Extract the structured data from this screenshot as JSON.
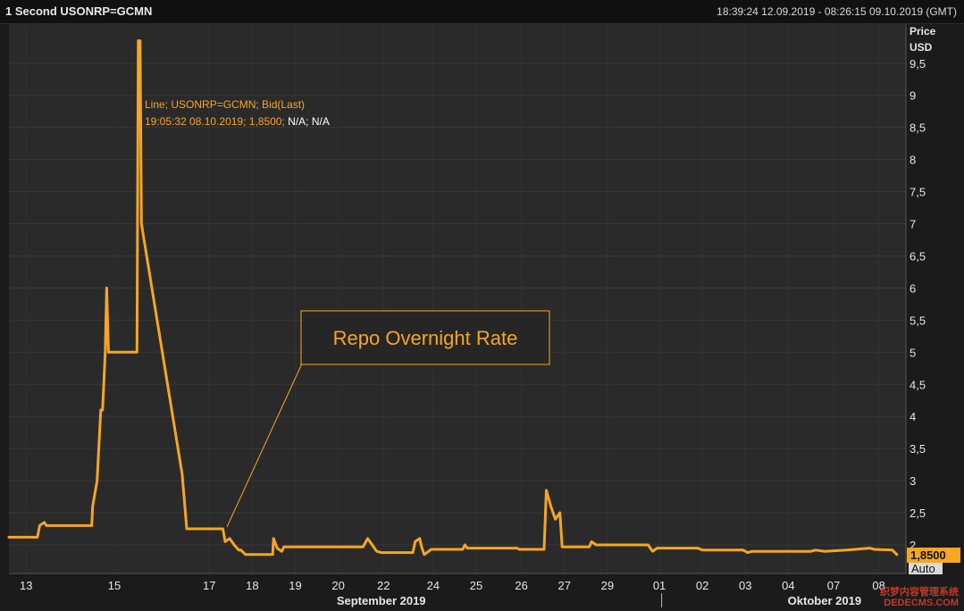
{
  "header": {
    "title": "1 Second USONRP=GCMN",
    "time_range": "18:39:24 12.09.2019 - 08:26:15 09.10.2019 (GMT)"
  },
  "axis": {
    "price_label": "Price",
    "currency_label": "USD",
    "auto_label": "Auto",
    "last_value_label": "1,8500"
  },
  "tooltip": {
    "line1": "Line; USONRP=GCMN; Bid(Last)",
    "line2_orange": "19:05:32 08.10.2019; 1,8500;",
    "line2_white": " N/A; N/A"
  },
  "callout": {
    "text": "Repo Overnight Rate"
  },
  "watermark": {
    "line1": "织梦内容管理系统",
    "line2": "DEDECMS.COM"
  },
  "colors": {
    "background": "#1b1b1b",
    "grid": "#2f2f2f",
    "line": "#f5a623",
    "accent": "#f5a623"
  },
  "chart_data": {
    "type": "line",
    "title": "1 Second USONRP=GCMN",
    "xlabel": "",
    "ylabel": "Price USD",
    "ylim": [
      1.75,
      9.9
    ],
    "yticks": [
      2,
      2.5,
      3,
      3.5,
      4,
      4.5,
      5,
      5.5,
      6,
      6.5,
      7,
      7.5,
      8,
      8.5,
      9,
      9.5
    ],
    "ytick_labels": [
      "2",
      "2,5",
      "3",
      "3,5",
      "4",
      "4,5",
      "5",
      "5,5",
      "6",
      "6,5",
      "7",
      "7,5",
      "8",
      "8,5",
      "9",
      "9,5"
    ],
    "x_tick_labels": [
      {
        "label": "13",
        "day": 13.15
      },
      {
        "label": "15",
        "day": 15.1
      },
      {
        "label": "17",
        "day": 17.2
      },
      {
        "label": "18",
        "day": 18.15
      },
      {
        "label": "19",
        "day": 19.1
      },
      {
        "label": "20",
        "day": 20.05
      },
      {
        "label": "22",
        "day": 21.05
      },
      {
        "label": "24",
        "day": 22.15
      },
      {
        "label": "25",
        "day": 23.1
      },
      {
        "label": "26",
        "day": 24.1
      },
      {
        "label": "27",
        "day": 25.05
      },
      {
        "label": "29",
        "day": 26.0
      },
      {
        "label": "01",
        "day": 27.15
      },
      {
        "label": "02",
        "day": 28.1
      },
      {
        "label": "03",
        "day": 29.05
      },
      {
        "label": "04",
        "day": 30.0
      },
      {
        "label": "07",
        "day": 31.0
      },
      {
        "label": "08",
        "day": 32.0
      }
    ],
    "month_labels": [
      {
        "label": "September 2019",
        "day": 21.0
      },
      {
        "label": "Oktober 2019",
        "day": 30.8
      }
    ],
    "month_divider_day": 27.2,
    "series": [
      {
        "points": [
          [
            12.77,
            2.12
          ],
          [
            13.4,
            2.12
          ],
          [
            13.45,
            2.3
          ],
          [
            13.55,
            2.35
          ],
          [
            13.6,
            2.3
          ],
          [
            14.3,
            2.3
          ],
          [
            14.6,
            2.3
          ],
          [
            14.62,
            2.6
          ],
          [
            14.72,
            3.0
          ],
          [
            14.8,
            4.1
          ],
          [
            14.84,
            4.1
          ],
          [
            14.9,
            5.0
          ],
          [
            14.93,
            6.0
          ],
          [
            14.97,
            5.0
          ],
          [
            15.6,
            5.0
          ],
          [
            15.63,
            9.85
          ],
          [
            15.67,
            9.85
          ],
          [
            15.7,
            7.0
          ],
          [
            16.6,
            3.1
          ],
          [
            16.7,
            2.25
          ],
          [
            17.1,
            2.25
          ],
          [
            17.5,
            2.25
          ],
          [
            17.55,
            2.05
          ],
          [
            17.65,
            2.1
          ],
          [
            17.75,
            2.0
          ],
          [
            17.85,
            1.92
          ],
          [
            17.9,
            1.92
          ],
          [
            18.0,
            1.85
          ],
          [
            18.2,
            1.85
          ],
          [
            18.6,
            1.85
          ],
          [
            18.62,
            2.1
          ],
          [
            18.7,
            1.95
          ],
          [
            18.8,
            1.9
          ],
          [
            18.85,
            1.97
          ],
          [
            19.2,
            1.97
          ],
          [
            20.6,
            1.97
          ],
          [
            20.7,
            2.1
          ],
          [
            20.8,
            2.0
          ],
          [
            20.9,
            1.9
          ],
          [
            21.0,
            1.88
          ],
          [
            21.7,
            1.88
          ],
          [
            21.75,
            2.05
          ],
          [
            21.85,
            2.1
          ],
          [
            21.9,
            1.95
          ],
          [
            21.95,
            1.85
          ],
          [
            22.05,
            1.9
          ],
          [
            22.1,
            1.93
          ],
          [
            22.8,
            1.93
          ],
          [
            22.85,
            2.0
          ],
          [
            22.9,
            1.95
          ],
          [
            23.2,
            1.95
          ],
          [
            24.0,
            1.95
          ],
          [
            24.05,
            1.93
          ],
          [
            24.6,
            1.93
          ],
          [
            24.65,
            2.85
          ],
          [
            24.75,
            2.6
          ],
          [
            24.85,
            2.4
          ],
          [
            24.95,
            2.5
          ],
          [
            25.0,
            1.97
          ],
          [
            25.6,
            1.97
          ],
          [
            25.65,
            2.05
          ],
          [
            25.75,
            2.0
          ],
          [
            26.5,
            2.0
          ],
          [
            26.9,
            2.0
          ],
          [
            27.0,
            1.9
          ],
          [
            27.1,
            1.95
          ],
          [
            28.0,
            1.95
          ],
          [
            28.1,
            1.92
          ],
          [
            29.0,
            1.92
          ],
          [
            29.1,
            1.88
          ],
          [
            29.2,
            1.9
          ],
          [
            29.6,
            1.9
          ],
          [
            30.5,
            1.9
          ],
          [
            30.6,
            1.92
          ],
          [
            30.8,
            1.9
          ],
          [
            31.3,
            1.92
          ],
          [
            31.8,
            1.95
          ],
          [
            31.9,
            1.93
          ],
          [
            32.3,
            1.92
          ],
          [
            32.4,
            1.85
          ]
        ]
      }
    ]
  }
}
